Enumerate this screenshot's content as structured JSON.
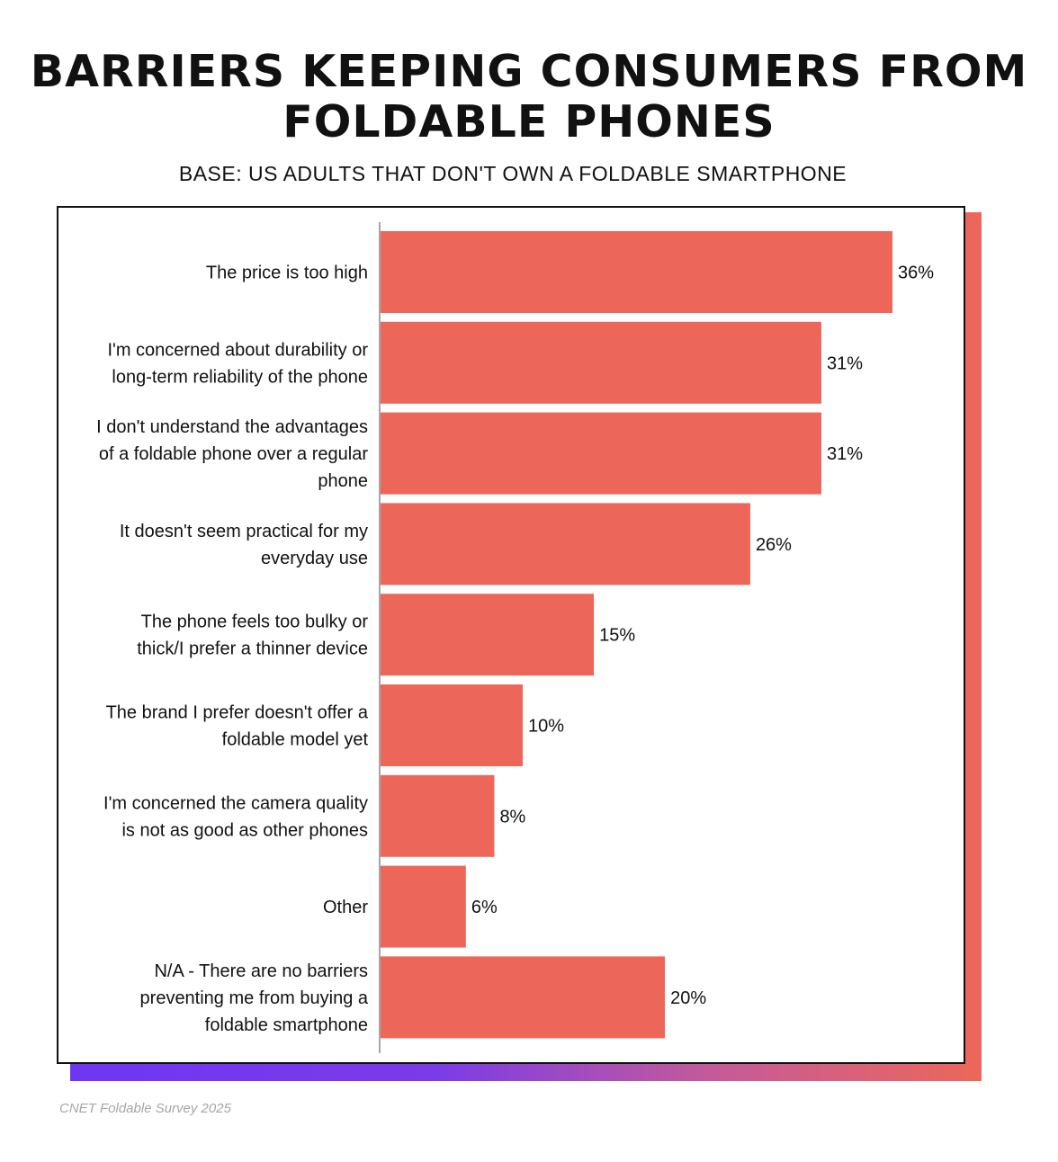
{
  "title_line1": "BARRIERS KEEPING CONSUMERS FROM",
  "title_line2": "FOLDABLE PHONES",
  "subtitle": "BASE: US ADULTS THAT DON'T OWN A FOLDABLE SMARTPHONE",
  "source": "CNET  Foldable Survey 2025",
  "colors": {
    "bar": "#ec675a",
    "gradient_start": "#6f36f2",
    "gradient_end": "#ec675a",
    "text": "#111111",
    "source_text": "#a6a6a6"
  },
  "chart_data": {
    "type": "bar",
    "orientation": "horizontal",
    "unit": "%",
    "xlim": [
      0,
      36
    ],
    "grid": false,
    "categories": [
      [
        "The price is too high"
      ],
      [
        "I'm concerned about durability or",
        "long-term reliability of the phone"
      ],
      [
        "I don't understand the advantages",
        "of a foldable phone over a regular",
        "phone"
      ],
      [
        "It doesn't seem practical for my",
        "everyday use"
      ],
      [
        "The phone feels too bulky or",
        "thick/I prefer a thinner device"
      ],
      [
        "The brand I prefer doesn't offer a",
        "foldable model yet"
      ],
      [
        "I'm concerned the camera quality",
        "is not as good as other phones"
      ],
      [
        "Other"
      ],
      [
        "N/A - There are no barriers",
        "preventing me from buying a",
        "foldable smartphone"
      ]
    ],
    "values": [
      36,
      31,
      31,
      26,
      15,
      10,
      8,
      6,
      20
    ],
    "value_labels": [
      "36%",
      "31%",
      "31%",
      "26%",
      "15%",
      "10%",
      "8%",
      "6%",
      "20%"
    ]
  }
}
